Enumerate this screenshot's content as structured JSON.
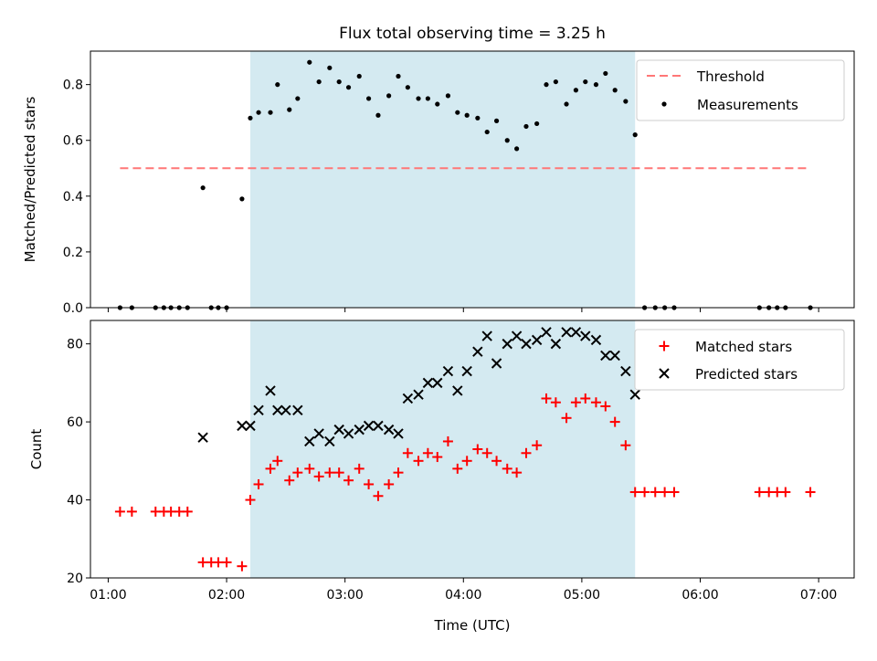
{
  "title": "Flux total observing time = 3.25 h",
  "chart_data": [
    {
      "type": "scatter",
      "ylabel": "Matched/Predicted stars",
      "ylim": [
        0,
        0.92
      ],
      "yticks": [
        0.0,
        0.2,
        0.4,
        0.6,
        0.8
      ],
      "ytick_labels": [
        "0.0",
        "0.2",
        "0.4",
        "0.6",
        "0.8"
      ],
      "xlim": [
        0.85,
        7.3
      ],
      "shaded_interval": [
        2.2,
        5.45
      ],
      "shade_color": "#d4eaf1",
      "threshold": {
        "name": "Threshold",
        "x": [
          1.1,
          6.93
        ],
        "y": 0.5,
        "color": "#ff7777",
        "style": "dashed"
      },
      "series": [
        {
          "name": "Measurements",
          "marker": "dot",
          "color": "#000000",
          "x": [
            1.1,
            1.2,
            1.4,
            1.47,
            1.53,
            1.6,
            1.67,
            1.8,
            1.87,
            1.93,
            2.0,
            2.13,
            2.2,
            2.27,
            2.37,
            2.43,
            2.53,
            2.6,
            2.7,
            2.78,
            2.87,
            2.95,
            3.03,
            3.12,
            3.2,
            3.28,
            3.37,
            3.45,
            3.53,
            3.62,
            3.7,
            3.78,
            3.87,
            3.95,
            4.03,
            4.12,
            4.2,
            4.28,
            4.37,
            4.45,
            4.53,
            4.62,
            4.7,
            4.78,
            4.87,
            4.95,
            5.03,
            5.12,
            5.2,
            5.28,
            5.37,
            5.45,
            5.53,
            5.62,
            5.7,
            5.78,
            6.5,
            6.58,
            6.65,
            6.72,
            6.93
          ],
          "y": [
            0,
            0,
            0,
            0,
            0,
            0,
            0,
            0.43,
            0,
            0,
            0,
            0.39,
            0.68,
            0.7,
            0.7,
            0.8,
            0.71,
            0.75,
            0.88,
            0.81,
            0.86,
            0.81,
            0.79,
            0.83,
            0.75,
            0.69,
            0.76,
            0.83,
            0.79,
            0.75,
            0.75,
            0.73,
            0.76,
            0.7,
            0.69,
            0.68,
            0.63,
            0.67,
            0.6,
            0.57,
            0.65,
            0.66,
            0.8,
            0.81,
            0.73,
            0.78,
            0.81,
            0.8,
            0.84,
            0.78,
            0.74,
            0.62,
            0,
            0,
            0,
            0,
            0,
            0,
            0,
            0,
            0
          ]
        }
      ]
    },
    {
      "type": "scatter",
      "ylabel": "Count",
      "xlabel": "Time (UTC)",
      "ylim": [
        20,
        86
      ],
      "yticks": [
        20,
        40,
        60,
        80
      ],
      "ytick_labels": [
        "20",
        "40",
        "60",
        "80"
      ],
      "xlim": [
        0.85,
        7.3
      ],
      "xticks": [
        1,
        2,
        3,
        4,
        5,
        6,
        7
      ],
      "xtick_labels": [
        "01:00",
        "02:00",
        "03:00",
        "04:00",
        "05:00",
        "06:00",
        "07:00"
      ],
      "shaded_interval": [
        2.2,
        5.45
      ],
      "shade_color": "#d4eaf1",
      "series": [
        {
          "name": "Matched stars",
          "marker": "plus",
          "color": "#ff0000",
          "x": [
            1.1,
            1.2,
            1.4,
            1.47,
            1.53,
            1.6,
            1.67,
            1.8,
            1.87,
            1.93,
            2.0,
            2.13,
            2.2,
            2.27,
            2.37,
            2.43,
            2.53,
            2.6,
            2.7,
            2.78,
            2.87,
            2.95,
            3.03,
            3.12,
            3.2,
            3.28,
            3.37,
            3.45,
            3.53,
            3.62,
            3.7,
            3.78,
            3.87,
            3.95,
            4.03,
            4.12,
            4.2,
            4.28,
            4.37,
            4.45,
            4.53,
            4.62,
            4.7,
            4.78,
            4.87,
            4.95,
            5.03,
            5.12,
            5.2,
            5.28,
            5.37,
            5.45,
            5.53,
            5.62,
            5.7,
            5.78,
            6.5,
            6.58,
            6.65,
            6.72,
            6.93
          ],
          "y": [
            37,
            37,
            37,
            37,
            37,
            37,
            37,
            24,
            24,
            24,
            24,
            23,
            40,
            44,
            48,
            50,
            45,
            47,
            48,
            46,
            47,
            47,
            45,
            48,
            44,
            41,
            44,
            47,
            52,
            50,
            52,
            51,
            55,
            48,
            50,
            53,
            52,
            50,
            48,
            47,
            52,
            54,
            66,
            65,
            61,
            65,
            66,
            65,
            64,
            60,
            54,
            42,
            42,
            42,
            42,
            42,
            42,
            42,
            42,
            42,
            42
          ]
        },
        {
          "name": "Predicted stars",
          "marker": "x",
          "color": "#000000",
          "x": [
            1.8,
            2.13,
            2.2,
            2.27,
            2.37,
            2.43,
            2.5,
            2.6,
            2.7,
            2.78,
            2.87,
            2.95,
            3.03,
            3.12,
            3.2,
            3.28,
            3.37,
            3.45,
            3.53,
            3.62,
            3.7,
            3.78,
            3.87,
            3.95,
            4.03,
            4.12,
            4.2,
            4.28,
            4.37,
            4.45,
            4.53,
            4.62,
            4.7,
            4.78,
            4.87,
            4.95,
            5.03,
            5.12,
            5.2,
            5.28,
            5.37,
            5.45
          ],
          "y": [
            56,
            59,
            59,
            63,
            68,
            63,
            63,
            63,
            55,
            57,
            55,
            58,
            57,
            58,
            59,
            59,
            58,
            57,
            66,
            67,
            70,
            70,
            73,
            68,
            73,
            78,
            82,
            75,
            80,
            82,
            80,
            81,
            83,
            80,
            83,
            83,
            82,
            81,
            77,
            77,
            73,
            67
          ]
        }
      ]
    }
  ]
}
